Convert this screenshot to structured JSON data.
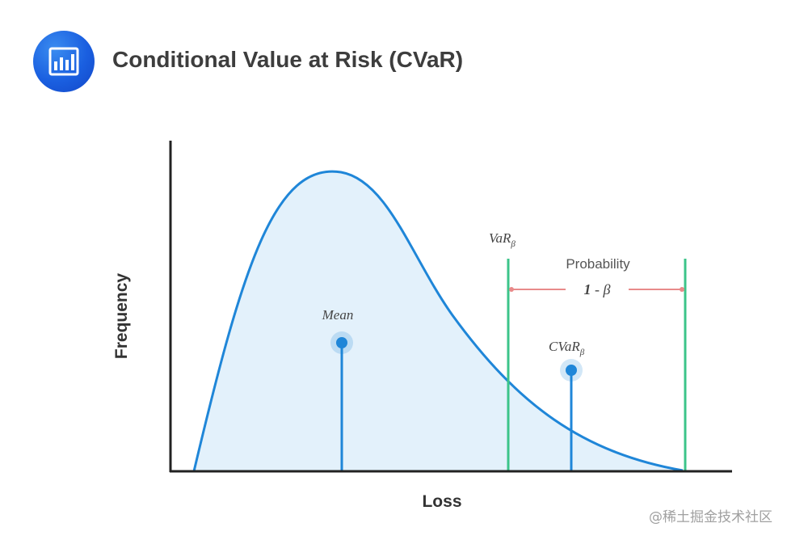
{
  "header": {
    "title": "Conditional Value at Risk (CVaR)",
    "icon": "bar-chart-icon",
    "icon_color": "#1a5fe0"
  },
  "diagram": {
    "y_axis_label": "Frequency",
    "x_axis_label": "Loss",
    "mean_label": "Mean",
    "var_label": "VaR",
    "var_subscript": "β",
    "cvar_label": "CVaR",
    "cvar_subscript": "β",
    "probability_label": "Probability",
    "probability_value_one": "1",
    "probability_value_rest": " - β",
    "colors": {
      "curve": "#1f86d8",
      "fill": "#e3f1fb",
      "markers": "#1f86d8",
      "threshold_lines": "#3cc48a",
      "probability_arrow": "#e88a8a",
      "axes": "#222222"
    }
  },
  "watermark": "@稀土掘金技术社区"
}
